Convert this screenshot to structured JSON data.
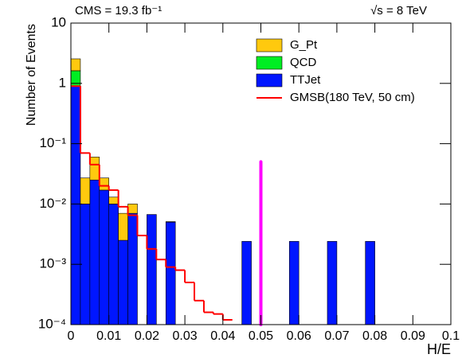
{
  "chart_data": {
    "type": "stacked-histogram",
    "header_left": "CMS = 19.3 fb⁻¹",
    "header_right": "√s = 8 TeV",
    "x_label": "H/E",
    "y_label": "Number of Events",
    "log_y": true,
    "bins": [
      0,
      0.0025,
      0.005,
      0.0075,
      0.01,
      0.0125,
      0.015,
      0.0175,
      0.02,
      0.0225,
      0.025,
      0.0275,
      0.03,
      0.0325,
      0.035,
      0.0375,
      0.04,
      0.0425,
      0.045,
      0.0475,
      0.05,
      0.0525,
      0.055,
      0.0575,
      0.06,
      0.0625,
      0.065,
      0.0675,
      0.07,
      0.0725,
      0.075,
      0.0775,
      0.08,
      0.0825,
      0.085,
      0.0875,
      0.09,
      0.0925,
      0.095,
      0.0975,
      0.1
    ],
    "series": [
      {
        "name": "TTJet",
        "color": "#0016ff",
        "values": [
          0.9,
          0.01,
          0.025,
          0.017,
          0.01,
          0.0025,
          0.007,
          0,
          0.0067,
          0,
          0.005,
          0,
          0,
          0,
          0,
          0,
          0,
          0,
          0.0024,
          0,
          0,
          0,
          0,
          0.0024,
          0,
          0,
          0,
          0.0024,
          0,
          0,
          0,
          0.0024,
          0,
          0,
          0,
          0,
          0,
          0,
          0,
          0
        ]
      },
      {
        "name": "QCD",
        "color": "#00ee22",
        "values": [
          0.72,
          0,
          0,
          0,
          0,
          0,
          0,
          0,
          0,
          0,
          0,
          0,
          0,
          0,
          0,
          0,
          0,
          0,
          0,
          0,
          0,
          0,
          0,
          0,
          0,
          0,
          0,
          0,
          0,
          0,
          0,
          0,
          0,
          0,
          0,
          0,
          0,
          0,
          0,
          0
        ]
      },
      {
        "name": "G_Pt",
        "color": "#ffc90e",
        "values": [
          0.93,
          0.017,
          0.035,
          0.01,
          0.003,
          0.0045,
          0.003,
          0,
          0,
          0,
          0.0001,
          0,
          0,
          0,
          0,
          0,
          0,
          0,
          0,
          0,
          0,
          0,
          0,
          0,
          0,
          0,
          0,
          0,
          0,
          0,
          0,
          0,
          0,
          0,
          0,
          0,
          0,
          0,
          0,
          0
        ]
      }
    ],
    "line_series": {
      "name": "GMSB(180 TeV, 50 cm)",
      "color": "#ff0000",
      "values": [
        0.9,
        0.07,
        0.045,
        0.02,
        0.017,
        0.009,
        0.0065,
        0.003,
        0.0018,
        0.0012,
        0.0009,
        0.0008,
        0.0005,
        0.00025,
        0.00016,
        0.00015,
        0.00012,
        null,
        null,
        null,
        null,
        null,
        null,
        null,
        null,
        null,
        null,
        null,
        null,
        null,
        null,
        null,
        null,
        null,
        null,
        null,
        null,
        null,
        null,
        null
      ]
    },
    "signal_line": {
      "x": 0.05,
      "value": 0.05,
      "color": "#ff00ff"
    },
    "xlim": [
      0,
      0.1
    ],
    "ylim": [
      0.0001,
      10
    ],
    "xticks": [
      0,
      0.01,
      0.02,
      0.03,
      0.04,
      0.05,
      0.06,
      0.07,
      0.08,
      0.09,
      0.1
    ],
    "yticks": [
      {
        "value": 0.0001,
        "label": "10⁻⁴"
      },
      {
        "value": 0.001,
        "label": "10⁻³"
      },
      {
        "value": 0.01,
        "label": "10⁻²"
      },
      {
        "value": 0.1,
        "label": "10⁻¹"
      },
      1,
      10
    ]
  }
}
